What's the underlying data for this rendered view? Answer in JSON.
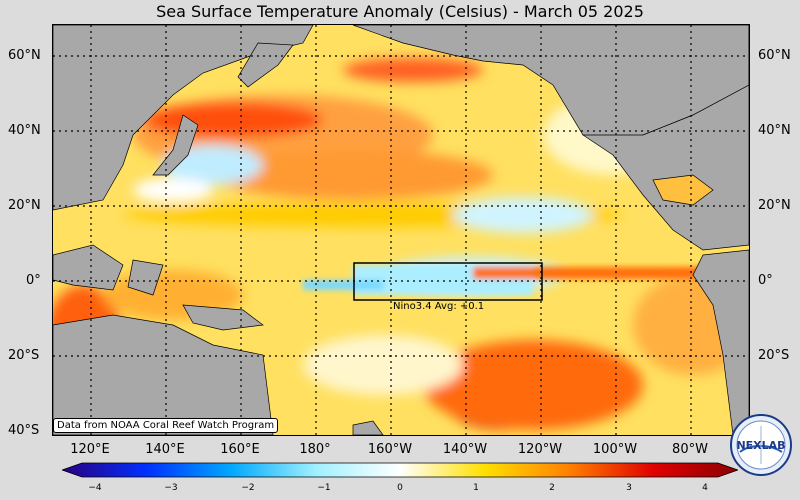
{
  "title": "Sea Surface Temperature Anomaly (Celsius) - March 05 2025",
  "lat_labels": [
    "60°N",
    "40°N",
    "20°N",
    "0°",
    "20°S",
    "40°S"
  ],
  "lon_labels": [
    "120°E",
    "140°E",
    "160°E",
    "180°",
    "160°W",
    "140°W",
    "120°W",
    "100°W",
    "80°W"
  ],
  "nino_label": "Nino3.4 Avg: +0.1",
  "credit": "Data from NOAA Coral Reef Watch Program",
  "colorbar": {
    "min": -4,
    "max": 4,
    "tick_labels": [
      "−4",
      "−3",
      "−2",
      "−1",
      "0",
      "1",
      "2",
      "3",
      "4"
    ],
    "colors": [
      "#2a0080",
      "#0030ff",
      "#00a8ff",
      "#a0f0ff",
      "#ffffff",
      "#ffe000",
      "#ff8000",
      "#e00000",
      "#8a0000"
    ]
  },
  "logo_text": "NEXLAB",
  "colors": {
    "land": "#a8a8a8",
    "ocean_base": "#ffe060",
    "grid": "#000000"
  }
}
